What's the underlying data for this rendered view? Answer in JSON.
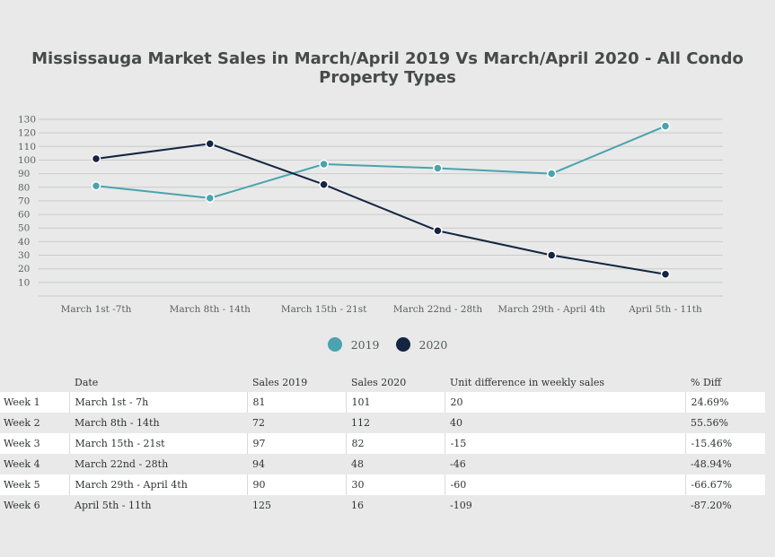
{
  "title": "Mississauga Market Sales in March/April 2019 Vs March/April 2020 - All Condo Property Types",
  "chart_data": {
    "type": "line",
    "title": "Mississauga Market Sales in March/April 2019 Vs March/April 2020 - All Condo Property Types",
    "categories": [
      "March 1st -7th",
      "March 8th - 14th",
      "March 15th - 21st",
      "March 22nd - 28th",
      "March 29th - April 4th",
      "April 5th - 11th"
    ],
    "series": [
      {
        "name": "2019",
        "values": [
          81,
          72,
          97,
          94,
          90,
          125
        ],
        "color": "#4aa3ae"
      },
      {
        "name": "2020",
        "values": [
          101,
          112,
          82,
          48,
          30,
          16
        ],
        "color": "#132540"
      }
    ],
    "yticks": [
      10,
      20,
      30,
      40,
      50,
      60,
      70,
      80,
      90,
      100,
      110,
      120,
      130
    ],
    "ylim": [
      0,
      130
    ],
    "grid": true,
    "legend_position": "bottom-center"
  },
  "table": {
    "headers": [
      "",
      "Date",
      "Sales 2019",
      "Sales 2020",
      "Unit difference in weekly sales",
      "% Diff"
    ],
    "rows": [
      [
        "Week 1",
        "March 1st - 7h",
        "81",
        "101",
        "20",
        "24.69%"
      ],
      [
        "Week 2",
        "March 8th - 14th",
        "72",
        "112",
        "40",
        "55.56%"
      ],
      [
        "Week 3",
        "March 15th - 21st",
        "97",
        "82",
        "-15",
        "-15.46%"
      ],
      [
        "Week 4",
        "March 22nd - 28th",
        "94",
        "48",
        "-46",
        "-48.94%"
      ],
      [
        "Week 5",
        "March 29th - April 4th",
        "90",
        "30",
        "-60",
        "-66.67%"
      ],
      [
        "Week 6",
        "April 5th - 11th",
        "125",
        "16",
        "-109",
        "-87.20%"
      ]
    ]
  }
}
